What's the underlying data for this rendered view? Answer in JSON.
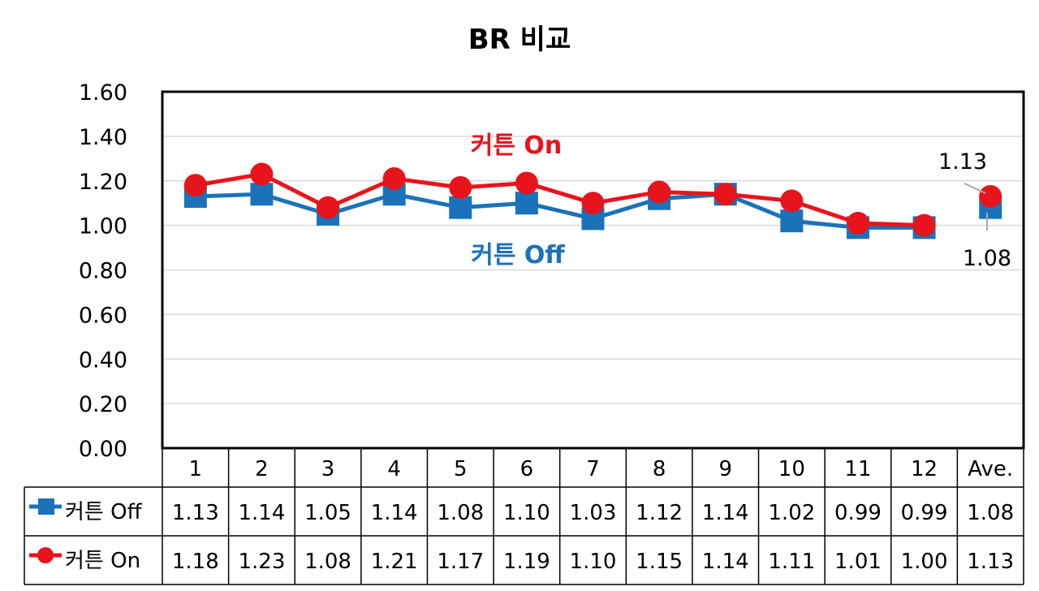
{
  "chart_data": {
    "type": "line",
    "title": "BR 비교",
    "categories": [
      "1",
      "2",
      "3",
      "4",
      "5",
      "6",
      "7",
      "8",
      "9",
      "10",
      "11",
      "12",
      "Ave."
    ],
    "ylim": [
      0,
      1.6
    ],
    "yticks": [
      "0.00",
      "0.20",
      "0.40",
      "0.60",
      "0.80",
      "1.00",
      "1.20",
      "1.40",
      "1.60"
    ],
    "grid": true,
    "legend": "data-table-left",
    "series": [
      {
        "name": "커튼 Off",
        "color": "#1A72BA",
        "marker": "square",
        "values": [
          1.13,
          1.14,
          1.05,
          1.14,
          1.08,
          1.1,
          1.03,
          1.12,
          1.14,
          1.02,
          0.99,
          0.99,
          1.08
        ],
        "labels": [
          "1.13",
          "1.14",
          "1.05",
          "1.14",
          "1.08",
          "1.10",
          "1.03",
          "1.12",
          "1.14",
          "1.02",
          "0.99",
          "0.99",
          "1.08"
        ]
      },
      {
        "name": "커튼 On",
        "color": "#E8141B",
        "marker": "circle",
        "values": [
          1.18,
          1.23,
          1.08,
          1.21,
          1.17,
          1.19,
          1.1,
          1.15,
          1.14,
          1.11,
          1.01,
          1.0,
          1.13
        ],
        "labels": [
          "1.18",
          "1.23",
          "1.08",
          "1.21",
          "1.17",
          "1.19",
          "1.10",
          "1.15",
          "1.14",
          "1.11",
          "1.01",
          "1.00",
          "1.13"
        ]
      }
    ],
    "annotations": [
      {
        "text": "커튼 On",
        "color": "#E8141B"
      },
      {
        "text": "커튼 Off",
        "color": "#1A72BA"
      }
    ],
    "ave_labels": {
      "on": "1.13",
      "off": "1.08"
    }
  }
}
